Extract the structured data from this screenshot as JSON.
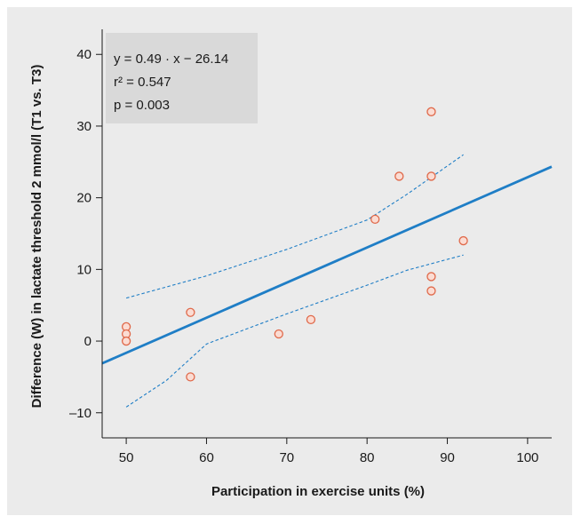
{
  "chart_data": {
    "type": "scatter",
    "title": "",
    "xlabel": "Participation in exercise units (%)",
    "ylabel": "Difference (W) in lactate threshold 2 mmol/l (T1 vs. T3)",
    "xlim": [
      47,
      103
    ],
    "ylim": [
      -13.5,
      43.5
    ],
    "x_ticks": [
      50,
      60,
      70,
      80,
      90,
      100
    ],
    "y_ticks": [
      -10,
      0,
      10,
      20,
      30,
      40
    ],
    "grid": false,
    "points": [
      {
        "x": 50,
        "y": 2
      },
      {
        "x": 50,
        "y": 1
      },
      {
        "x": 50,
        "y": 0
      },
      {
        "x": 58,
        "y": 4
      },
      {
        "x": 58,
        "y": -5
      },
      {
        "x": 69,
        "y": 1
      },
      {
        "x": 73,
        "y": 3
      },
      {
        "x": 81,
        "y": 17
      },
      {
        "x": 84,
        "y": 23
      },
      {
        "x": 88,
        "y": 32
      },
      {
        "x": 88,
        "y": 23
      },
      {
        "x": 88,
        "y": 9
      },
      {
        "x": 88,
        "y": 7
      },
      {
        "x": 92,
        "y": 14
      }
    ],
    "regression": {
      "slope": 0.49,
      "intercept": -26.14,
      "x_range": [
        47,
        103
      ]
    },
    "confidence_band": {
      "upper": [
        [
          50,
          6
        ],
        [
          60,
          9.1
        ],
        [
          70,
          12.8
        ],
        [
          80,
          16.9
        ],
        [
          85,
          20.5
        ],
        [
          92,
          26
        ]
      ],
      "lower": [
        [
          50,
          -9.2
        ],
        [
          55,
          -5.5
        ],
        [
          60,
          -0.4
        ],
        [
          70,
          3.8
        ],
        [
          80,
          7.8
        ],
        [
          85,
          9.9
        ],
        [
          92,
          12
        ]
      ]
    },
    "annotation": {
      "lines": [
        "y = 0.49 · x − 26.14",
        "r² = 0.547",
        "p = 0.003"
      ]
    },
    "colors": {
      "background": "#ebebeb",
      "point_fill": "#fbdcd3",
      "point_stroke": "#e0694a",
      "regression_line": "#1f7ec6",
      "confidence_band": "#1f7ec6",
      "annotation_box": "#d9d9d9",
      "axis": "#1a1a1a"
    }
  }
}
